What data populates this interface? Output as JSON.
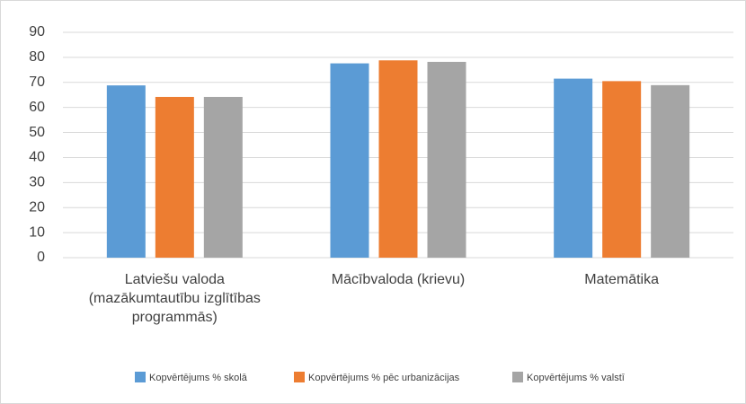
{
  "chart_data": {
    "type": "bar",
    "categories": [
      "Latviešu valoda (mazākumtautību izglītības programmās)",
      "Mācībvaloda (krievu)",
      "Matemātika"
    ],
    "series": [
      {
        "name": "Kopvērtējums % skolā",
        "color": "#5b9bd5",
        "values": [
          68.8,
          77.6,
          71.5
        ]
      },
      {
        "name": "Kopvērtējums % pēc urbanizācijas",
        "color": "#ed7d31",
        "values": [
          64.2,
          78.8,
          70.5
        ]
      },
      {
        "name": "Kopvērtējums % valstī",
        "color": "#a5a5a5",
        "values": [
          64.2,
          78.2,
          68.9
        ]
      }
    ],
    "ylim": [
      0,
      90
    ],
    "yticks": [
      0,
      10,
      20,
      30,
      40,
      50,
      60,
      70,
      80,
      90
    ],
    "grid": true,
    "legend": "bottom"
  }
}
